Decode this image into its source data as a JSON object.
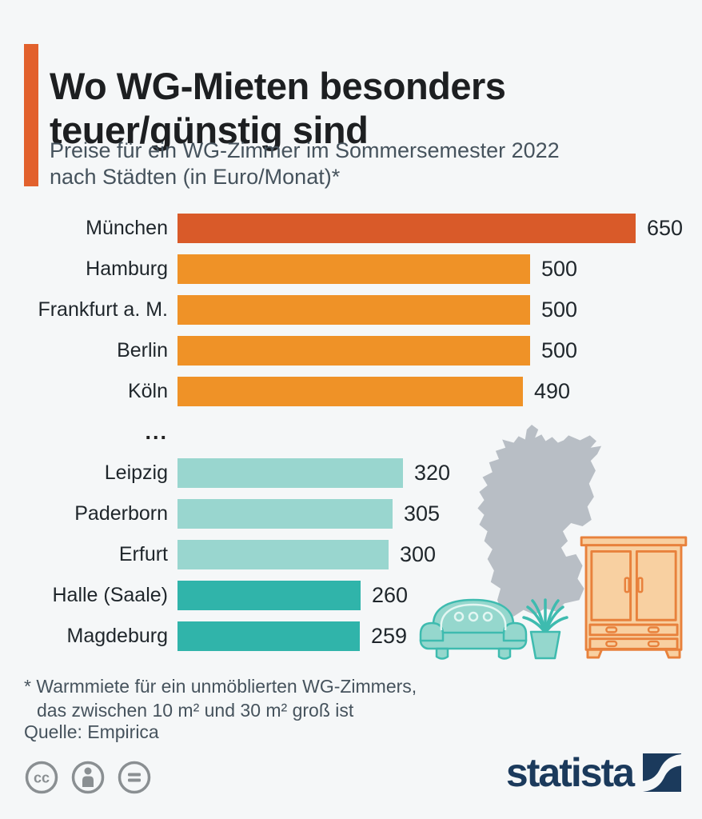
{
  "page": {
    "background_color": "#f5f7f8"
  },
  "header": {
    "accent_color": "#e2612d",
    "title_lines": [
      "Wo WG-Mieten besonders",
      "teuer/günstig sind"
    ],
    "title": "Wo WG-Mieten besonders teuer/günstig sind",
    "subtitle_lines": [
      "Preise für ein WG-Zimmer im Sommersemester 2022",
      "nach Städten (in Euro/Monat)*"
    ],
    "subtitle": "Preise für ein WG-Zimmer im Sommersemester 2022 nach Städten (in Euro/Monat)*"
  },
  "chart_data": {
    "type": "bar",
    "orientation": "horizontal",
    "title": "Wo WG-Mieten besonders teuer/günstig sind",
    "unit": "Euro/Monat",
    "xlim": [
      0,
      650
    ],
    "grid": false,
    "legend": false,
    "categories": [
      "München",
      "Hamburg",
      "Frankfurt a. M.",
      "Berlin",
      "Köln",
      "Leipzig",
      "Paderborn",
      "Erfurt",
      "Halle (Saale)",
      "Magdeburg"
    ],
    "values": [
      650,
      500,
      500,
      500,
      490,
      320,
      305,
      300,
      260,
      259
    ],
    "bar_colors": [
      "#d95a29",
      "#ef9227",
      "#ef9227",
      "#ef9227",
      "#ef9227",
      "#99d6cf",
      "#99d6cf",
      "#99d6cf",
      "#30b4aa",
      "#30b4aa"
    ],
    "separator_after_index": 4,
    "separator_label": "...",
    "value_labels_shown": true
  },
  "illustrations": {
    "map": "germany-map-silhouette",
    "map_color": "#b8bec5",
    "couch": "couch-illustration",
    "plant": "potted-plant-illustration",
    "wardrobe": "wardrobe-illustration",
    "teal_fill": "#95d7cd",
    "teal_outline": "#3ebbaf",
    "wardrobe_fill": "#f8d0a1",
    "wardrobe_outline": "#e8813c"
  },
  "footnotes": {
    "line1": "* Warmmiete für ein unmöblierten WG-Zimmers,",
    "line2": "das zwischen 10 m² und 30 m² groß ist",
    "source": "Quelle: Empirica"
  },
  "footer": {
    "license_icons": [
      "cc-icon",
      "attribution-icon",
      "equal-icon"
    ],
    "logo_text": "statista",
    "logo_color": "#1b3a5c"
  }
}
